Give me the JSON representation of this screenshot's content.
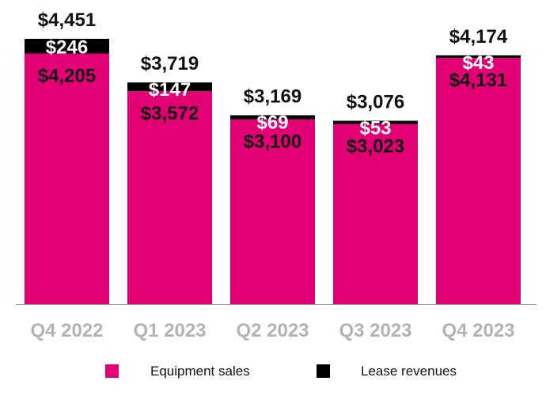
{
  "chart_data": {
    "type": "bar",
    "stacked": true,
    "categories": [
      "Q4 2022",
      "Q1 2023",
      "Q2 2023",
      "Q3 2023",
      "Q4 2023"
    ],
    "series": [
      {
        "name": "Equipment sales",
        "color": "#e20074",
        "values": [
          4205,
          3572,
          3100,
          3023,
          4131
        ],
        "labels": [
          "$4,205",
          "$3,572",
          "$3,100",
          "$3,023",
          "$4,131"
        ]
      },
      {
        "name": "Lease revenues",
        "color": "#000000",
        "values": [
          246,
          147,
          69,
          53,
          43
        ],
        "labels": [
          "$246",
          "$147",
          "$69",
          "$53",
          "$43"
        ]
      }
    ],
    "totals": [
      4451,
      3719,
      3169,
      3076,
      4174
    ],
    "total_labels": [
      "$4,451",
      "$3,719",
      "$3,169",
      "$3,076",
      "$4,174"
    ],
    "title": "",
    "xlabel": "",
    "ylabel": "",
    "ylim": [
      0,
      4451
    ],
    "grid": false,
    "legend_position": "bottom",
    "tick_label_color": "#b3b3b3",
    "axis_color": "#999999"
  }
}
